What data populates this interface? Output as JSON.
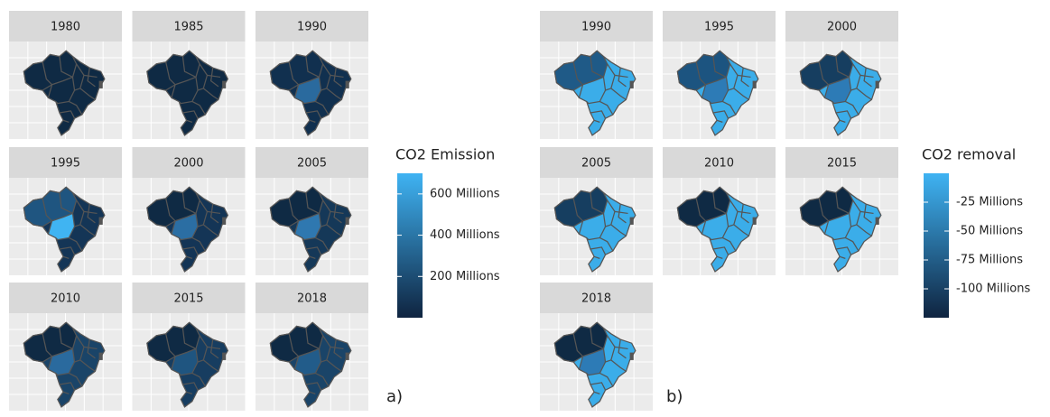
{
  "panels": [
    {
      "label": "a)",
      "years": [
        "1980",
        "1985",
        "1990",
        "1995",
        "2000",
        "2005",
        "2010",
        "2015",
        "2018"
      ],
      "legend": {
        "title": "CO2 Emission",
        "lim": [
          0,
          700
        ],
        "ticks": [
          {
            "value": 200,
            "label": "200 Millions"
          },
          {
            "value": 400,
            "label": "400 Millions"
          },
          {
            "value": 600,
            "label": "600 Millions"
          }
        ]
      }
    },
    {
      "label": "b)",
      "years": [
        "1990",
        "1995",
        "2000",
        "2005",
        "2010",
        "2015",
        "2018"
      ],
      "legend": {
        "title": "CO2 removal",
        "lim": [
          -125,
          0
        ],
        "ticks": [
          {
            "value": -25,
            "label": "-25 Millions"
          },
          {
            "value": -50,
            "label": "-50 Millions"
          },
          {
            "value": -75,
            "label": "-75 Millions"
          },
          {
            "value": -100,
            "label": "-100 Millions"
          }
        ]
      }
    }
  ]
}
